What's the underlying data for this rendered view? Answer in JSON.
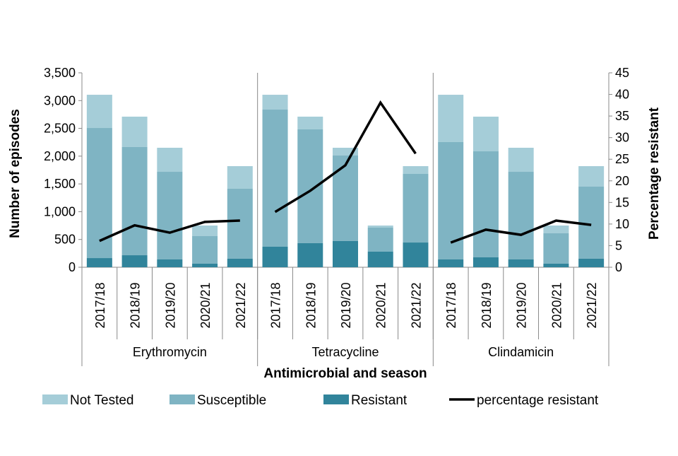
{
  "chart_data": {
    "type": "bar",
    "stacked": true,
    "title": "",
    "xlabel": "Antimicrobial and season",
    "ylabel": "Number of episodes",
    "y2label": "Percentage resistant",
    "ylim": [
      0,
      3500
    ],
    "yticks": [
      0,
      500,
      1000,
      1500,
      2000,
      2500,
      3000,
      3500
    ],
    "y2lim": [
      0,
      45
    ],
    "y2ticks": [
      0,
      5,
      10,
      15,
      20,
      25,
      30,
      35,
      40,
      45
    ],
    "groups": [
      {
        "name": "Erythromycin",
        "categories": [
          "2017/18",
          "2018/19",
          "2019/20",
          "2020/21",
          "2021/22"
        ]
      },
      {
        "name": "Tetracycline",
        "categories": [
          "2017/18",
          "2018/19",
          "2019/20",
          "2020/21",
          "2021/22"
        ]
      },
      {
        "name": "Clindamicin",
        "categories": [
          "2017/18",
          "2018/19",
          "2019/20",
          "2020/21",
          "2021/22"
        ]
      }
    ],
    "series": [
      {
        "name": "Resistant",
        "color": "#31849b",
        "values": [
          165,
          216,
          140,
          64,
          153,
          369,
          433,
          471,
          280,
          445,
          140,
          178,
          140,
          64,
          153
        ]
      },
      {
        "name": "Susceptible",
        "color": "#7fb4c3",
        "values": [
          2342,
          1948,
          1578,
          496,
          1260,
          2469,
          2049,
          1540,
          433,
          1235,
          2113,
          1909,
          1578,
          547,
          1298
        ]
      },
      {
        "name": "Not Tested",
        "color": "#a5cdd8",
        "values": [
          598,
          547,
          433,
          191,
          407,
          267,
          229,
          140,
          38,
          140,
          852,
          624,
          433,
          140,
          369
        ]
      },
      {
        "name": "percentage resistant",
        "type": "line",
        "axis": "right",
        "color": "#000000",
        "values": [
          6.1,
          9.7,
          8.0,
          10.5,
          10.8,
          12.8,
          17.7,
          23.6,
          38.1,
          26.3,
          5.7,
          8.7,
          7.5,
          10.8,
          9.8
        ]
      }
    ],
    "legend": {
      "placement": "bottom",
      "entries": [
        "Not Tested",
        "Susceptible",
        "Resistant",
        "percentage resistant"
      ]
    },
    "grid": false
  }
}
